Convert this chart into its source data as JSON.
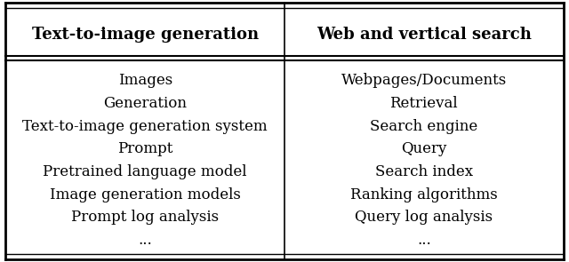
{
  "col1_header": "Text-to-image generation",
  "col2_header": "Web and vertical search",
  "col1_items": [
    "Images",
    "Generation",
    "Text-to-image generation system",
    "Prompt",
    "Pretrained language model",
    "Image generation models",
    "Prompt log analysis",
    "..."
  ],
  "col2_items": [
    "Webpages/Documents",
    "Retrieval",
    "Search engine",
    "Query",
    "Search index",
    "Ranking algorithms",
    "Query log analysis",
    "..."
  ],
  "background_color": "#ffffff",
  "text_color": "#000000",
  "header_fontsize": 13,
  "body_fontsize": 12,
  "fig_width": 6.4,
  "fig_height": 2.95
}
